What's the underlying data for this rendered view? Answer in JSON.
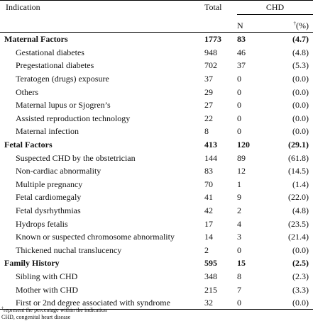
{
  "header": {
    "indication": "Indication",
    "total": "Total",
    "chd": "CHD",
    "n": "N",
    "pct_mark": "†",
    "pct": "(%)"
  },
  "groups": [
    {
      "label": "Maternal Factors",
      "total": "1773",
      "n": "83",
      "pct": "(4.7)",
      "rows": [
        {
          "label": "Gestational diabetes",
          "total": "948",
          "n": "46",
          "pct": "(4.8)"
        },
        {
          "label": "Pregestational diabetes",
          "total": "702",
          "n": "37",
          "pct": "(5.3)"
        },
        {
          "label": "Teratogen (drugs) exposure",
          "total": "37",
          "n": "0",
          "pct": "(0.0)"
        },
        {
          "label": "Others",
          "total": "29",
          "n": "0",
          "pct": "(0.0)"
        },
        {
          "label": "Maternal lupus or Sjogren’s",
          "total": "27",
          "n": "0",
          "pct": "(0.0)"
        },
        {
          "label": "Assisted reproduction technology",
          "total": "22",
          "n": "0",
          "pct": "(0.0)"
        },
        {
          "label": "Maternal infection",
          "total": "8",
          "n": "0",
          "pct": "(0.0)"
        }
      ]
    },
    {
      "label": "Fetal Factors",
      "total": "413",
      "n": "120",
      "pct": "(29.1)",
      "rows": [
        {
          "label": "Suspected CHD by the obstetrician",
          "total": "144",
          "n": "89",
          "pct": "(61.8)"
        },
        {
          "label": "Non-cardiac abnormality",
          "total": "83",
          "n": "12",
          "pct": "(14.5)"
        },
        {
          "label": "Multiple pregnancy",
          "total": "70",
          "n": "1",
          "pct": "(1.4)"
        },
        {
          "label": "Fetal cardiomegaly",
          "total": "41",
          "n": "9",
          "pct": "(22.0)"
        },
        {
          "label": "Fetal dysrhythmias",
          "total": "42",
          "n": "2",
          "pct": "(4.8)"
        },
        {
          "label": "Hydrops fetalis",
          "total": "17",
          "n": "4",
          "pct": "(23.5)"
        },
        {
          "label": "Known or suspected chromosome abnormality",
          "total": "14",
          "n": "3",
          "pct": "(21.4)"
        },
        {
          "label": "Thickened nuchal translucency",
          "total": "2",
          "n": "0",
          "pct": "(0.0)"
        }
      ]
    },
    {
      "label": "Family History",
      "total": "595",
      "n": "15",
      "pct": "(2.5)",
      "rows": [
        {
          "label": "Sibling with CHD",
          "total": "348",
          "n": "8",
          "pct": "(2.3)"
        },
        {
          "label": "Mother with CHD",
          "total": "215",
          "n": "7",
          "pct": "(3.3)"
        },
        {
          "label": "First or 2nd degree associated with syndrome",
          "total": "32",
          "n": "0",
          "pct": "(0.0)"
        }
      ]
    }
  ],
  "footnotes": {
    "mark": "†",
    "note1": "represent the percentage within the indication",
    "note2": "CHD, congenital heart disease"
  }
}
